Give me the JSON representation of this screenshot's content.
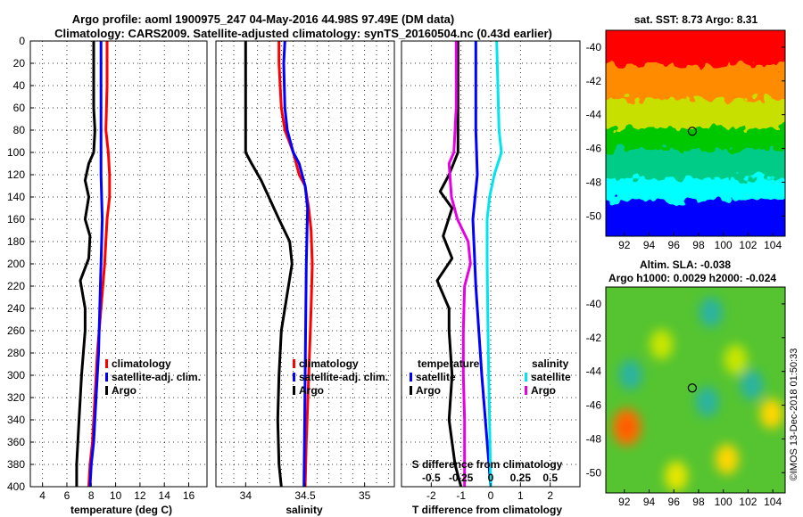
{
  "figure": {
    "title_line1": "Argo profile: aoml 1900975_247 04-May-2016 44.98S 97.49E (DM data)",
    "title_line2": "Climatology: CARS2009. Satellite-adjusted climatology: synTS_20160504.nc (0.43d earlier)",
    "side_label": "©IMOS 13-Dec-2018 01:50:33"
  },
  "colors": {
    "climatology": "#ff0000",
    "satellite": "#0000ff",
    "argo": "#000000",
    "sat_salinity": "#00e5ee",
    "argo_salinity_diff": "#e500e5"
  },
  "chart_data": [
    {
      "type": "line",
      "id": "temperature",
      "xlabel": "temperature (deg C)",
      "xlim": [
        3,
        17.5
      ],
      "ylim": [
        0,
        400
      ],
      "xticks": [
        4,
        6,
        8,
        10,
        12,
        14,
        16
      ],
      "yticks": [
        0,
        20,
        40,
        60,
        80,
        100,
        120,
        140,
        160,
        180,
        200,
        220,
        240,
        260,
        280,
        300,
        320,
        340,
        360,
        380,
        400
      ],
      "grid": true,
      "legend": [
        "climatology",
        "satellite-adj. clim.",
        "Argo"
      ],
      "series": [
        {
          "name": "climatology",
          "points": [
            [
              9.3,
              0
            ],
            [
              9.3,
              40
            ],
            [
              9.2,
              80
            ],
            [
              9.4,
              100
            ],
            [
              9.5,
              120
            ],
            [
              9.5,
              140
            ],
            [
              9.3,
              160
            ],
            [
              9.1,
              200
            ],
            [
              8.8,
              240
            ],
            [
              8.5,
              280
            ],
            [
              8.3,
              320
            ],
            [
              8.1,
              360
            ],
            [
              7.9,
              380
            ],
            [
              7.8,
              400
            ]
          ]
        },
        {
          "name": "satellite-adj. clim.",
          "points": [
            [
              8.8,
              0
            ],
            [
              8.8,
              40
            ],
            [
              8.8,
              80
            ],
            [
              8.8,
              120
            ],
            [
              8.9,
              160
            ],
            [
              8.8,
              200
            ],
            [
              8.7,
              240
            ],
            [
              8.6,
              280
            ],
            [
              8.4,
              320
            ],
            [
              8.2,
              360
            ],
            [
              8.0,
              380
            ],
            [
              7.9,
              400
            ]
          ]
        },
        {
          "name": "Argo",
          "points": [
            [
              8.2,
              0
            ],
            [
              8.2,
              60
            ],
            [
              8.3,
              80
            ],
            [
              8.2,
              100
            ],
            [
              7.8,
              110
            ],
            [
              7.5,
              125
            ],
            [
              7.8,
              140
            ],
            [
              7.5,
              160
            ],
            [
              7.9,
              175
            ],
            [
              7.8,
              195
            ],
            [
              7.1,
              215
            ],
            [
              7.5,
              240
            ],
            [
              7.5,
              260
            ],
            [
              7.2,
              300
            ],
            [
              7.0,
              340
            ],
            [
              6.8,
              380
            ],
            [
              6.8,
              400
            ]
          ]
        }
      ]
    },
    {
      "type": "line",
      "id": "salinity",
      "xlabel": "salinity",
      "xlim": [
        33.75,
        35.25
      ],
      "ylim": [
        0,
        400
      ],
      "xticks": [
        34,
        34.5,
        35
      ],
      "xticklabels": [
        "34",
        "34.5",
        "35"
      ],
      "grid": true,
      "legend": [
        "climatology",
        "satellite-adj. clim.",
        "Argo"
      ],
      "series": [
        {
          "name": "climatology",
          "points": [
            [
              34.28,
              0
            ],
            [
              34.28,
              20
            ],
            [
              34.29,
              40
            ],
            [
              34.3,
              60
            ],
            [
              34.33,
              80
            ],
            [
              34.4,
              100
            ],
            [
              34.45,
              120
            ],
            [
              34.5,
              130
            ],
            [
              34.53,
              150
            ],
            [
              34.55,
              170
            ],
            [
              34.56,
              200
            ],
            [
              34.55,
              240
            ],
            [
              34.53,
              300
            ],
            [
              34.51,
              360
            ],
            [
              34.5,
              400
            ]
          ]
        },
        {
          "name": "satellite-adj. clim.",
          "points": [
            [
              34.33,
              0
            ],
            [
              34.32,
              20
            ],
            [
              34.33,
              60
            ],
            [
              34.35,
              80
            ],
            [
              34.4,
              100
            ],
            [
              34.45,
              110
            ],
            [
              34.5,
              130
            ],
            [
              34.52,
              150
            ],
            [
              34.51,
              200
            ],
            [
              34.5,
              300
            ],
            [
              34.49,
              400
            ]
          ]
        },
        {
          "name": "Argo",
          "points": [
            [
              34.0,
              0
            ],
            [
              34.0,
              100
            ],
            [
              34.05,
              110
            ],
            [
              34.13,
              125
            ],
            [
              34.28,
              160
            ],
            [
              34.37,
              180
            ],
            [
              34.39,
              200
            ],
            [
              34.33,
              240
            ],
            [
              34.3,
              260
            ],
            [
              34.28,
              300
            ],
            [
              34.27,
              340
            ],
            [
              34.28,
              380
            ],
            [
              34.3,
              400
            ]
          ]
        }
      ]
    },
    {
      "type": "line",
      "id": "difference",
      "xlabel": "T difference from climatology",
      "top_axis_label": "S difference from climatology",
      "xlim": [
        -3,
        3
      ],
      "s_xlim": [
        -0.75,
        0.75
      ],
      "ylim": [
        0,
        400
      ],
      "xticks": [
        -2,
        -1,
        0,
        1,
        2
      ],
      "xticklabels": [
        "-2",
        "-1",
        "0",
        "1",
        "2"
      ],
      "s_xticks": [
        -0.5,
        -0.25,
        0,
        0.25,
        0.5
      ],
      "s_xticklabels": [
        "-0.5",
        "-0.25",
        "0",
        "0.25",
        "0.5"
      ],
      "grid": true,
      "legend_temperature": {
        "title": "temperature",
        "items": [
          "satellite",
          "Argo"
        ]
      },
      "legend_salinity": {
        "title": "salinity",
        "items": [
          "satellite",
          "Argo"
        ]
      },
      "series": [
        {
          "name": "temperature satellite",
          "axis": "T",
          "points": [
            [
              -0.5,
              0
            ],
            [
              -0.5,
              80
            ],
            [
              -0.45,
              120
            ],
            [
              -0.6,
              160
            ],
            [
              -0.5,
              220
            ],
            [
              -0.3,
              300
            ],
            [
              0,
              400
            ]
          ]
        },
        {
          "name": "temperature Argo",
          "axis": "T",
          "points": [
            [
              -1.1,
              0
            ],
            [
              -1.1,
              60
            ],
            [
              -1.1,
              100
            ],
            [
              -1.4,
              120
            ],
            [
              -1.7,
              135
            ],
            [
              -1.3,
              150
            ],
            [
              -1.6,
              175
            ],
            [
              -1.3,
              195
            ],
            [
              -1.8,
              215
            ],
            [
              -1.4,
              240
            ],
            [
              -1.4,
              260
            ],
            [
              -1.3,
              300
            ],
            [
              -1.4,
              340
            ],
            [
              -1.2,
              380
            ],
            [
              -1.0,
              400
            ]
          ]
        },
        {
          "name": "salinity satellite",
          "axis": "S",
          "points": [
            [
              0.05,
              0
            ],
            [
              0.06,
              40
            ],
            [
              0.07,
              80
            ],
            [
              0.09,
              100
            ],
            [
              0.03,
              120
            ],
            [
              -0.01,
              140
            ],
            [
              -0.03,
              160
            ],
            [
              -0.03,
              200
            ],
            [
              -0.02,
              280
            ],
            [
              -0.01,
              340
            ],
            [
              0,
              400
            ]
          ]
        },
        {
          "name": "salinity Argo",
          "axis": "S",
          "points": [
            [
              -0.29,
              0
            ],
            [
              -0.29,
              60
            ],
            [
              -0.31,
              100
            ],
            [
              -0.35,
              110
            ],
            [
              -0.33,
              140
            ],
            [
              -0.28,
              160
            ],
            [
              -0.19,
              180
            ],
            [
              -0.17,
              200
            ],
            [
              -0.22,
              220
            ],
            [
              -0.23,
              260
            ],
            [
              -0.23,
              300
            ],
            [
              -0.22,
              340
            ],
            [
              -0.22,
              400
            ]
          ]
        }
      ]
    },
    {
      "type": "heatmap",
      "id": "sst_map",
      "title": "sat. SST: 8.73 Argo: 8.31",
      "xlim": [
        90.5,
        105
      ],
      "ylim": [
        -51.2,
        -39
      ],
      "xticks": [
        92,
        94,
        96,
        98,
        100,
        102,
        104
      ],
      "yticks": [
        -40,
        -42,
        -44,
        -46,
        -48,
        -50
      ],
      "marker": {
        "lon": 97.49,
        "lat": -44.98
      },
      "bands": [
        {
          "lat_top": -39,
          "lat_bottom": -41.5,
          "color": "#ff0000"
        },
        {
          "lat_top": -41.5,
          "lat_bottom": -43.5,
          "color": "#ff8c00"
        },
        {
          "lat_top": -43.5,
          "lat_bottom": -45.2,
          "color": "#c8e000"
        },
        {
          "lat_top": -45.2,
          "lat_bottom": -46.5,
          "color": "#00c800"
        },
        {
          "lat_top": -46.5,
          "lat_bottom": -48.2,
          "color": "#00cc88"
        },
        {
          "lat_top": -48.2,
          "lat_bottom": -49.5,
          "color": "#00ffff"
        },
        {
          "lat_top": -49.5,
          "lat_bottom": -51.2,
          "color": "#0000ff"
        }
      ]
    },
    {
      "type": "heatmap",
      "id": "sla_map",
      "title_line1": "Altim. SLA: -0.038",
      "title_line2": "Argo h1000: 0.0029 h2000: -0.024",
      "xlim": [
        90.5,
        105
      ],
      "ylim": [
        -51.2,
        -39
      ],
      "xticks": [
        92,
        94,
        96,
        98,
        100,
        102,
        104
      ],
      "yticks": [
        -40,
        -42,
        -44,
        -46,
        -48,
        -50
      ],
      "marker": {
        "lon": 97.49,
        "lat": -44.98
      },
      "blobs": [
        {
          "lon": 92.2,
          "lat": -47.3,
          "color": "#ff6a00"
        },
        {
          "lon": 92.2,
          "lat": -47.3,
          "color": "#ff0000"
        },
        {
          "lon": 100.3,
          "lat": -49.2,
          "color": "#ffd700"
        },
        {
          "lon": 103.9,
          "lat": -46.5,
          "color": "#ffd700"
        },
        {
          "lon": 95.0,
          "lat": -42.4,
          "color": "#c8e600"
        },
        {
          "lon": 101.0,
          "lat": -43.3,
          "color": "#c8e600"
        },
        {
          "lon": 96.2,
          "lat": -50.2,
          "color": "#e6e600"
        },
        {
          "lon": 98.7,
          "lat": -45.8,
          "color": "#2bb3a0"
        },
        {
          "lon": 102.3,
          "lat": -44.8,
          "color": "#2bb3a0"
        },
        {
          "lon": 92.5,
          "lat": -44.2,
          "color": "#2bb3a0"
        },
        {
          "lon": 99.0,
          "lat": -40.5,
          "color": "#2bb3a0"
        }
      ]
    }
  ]
}
